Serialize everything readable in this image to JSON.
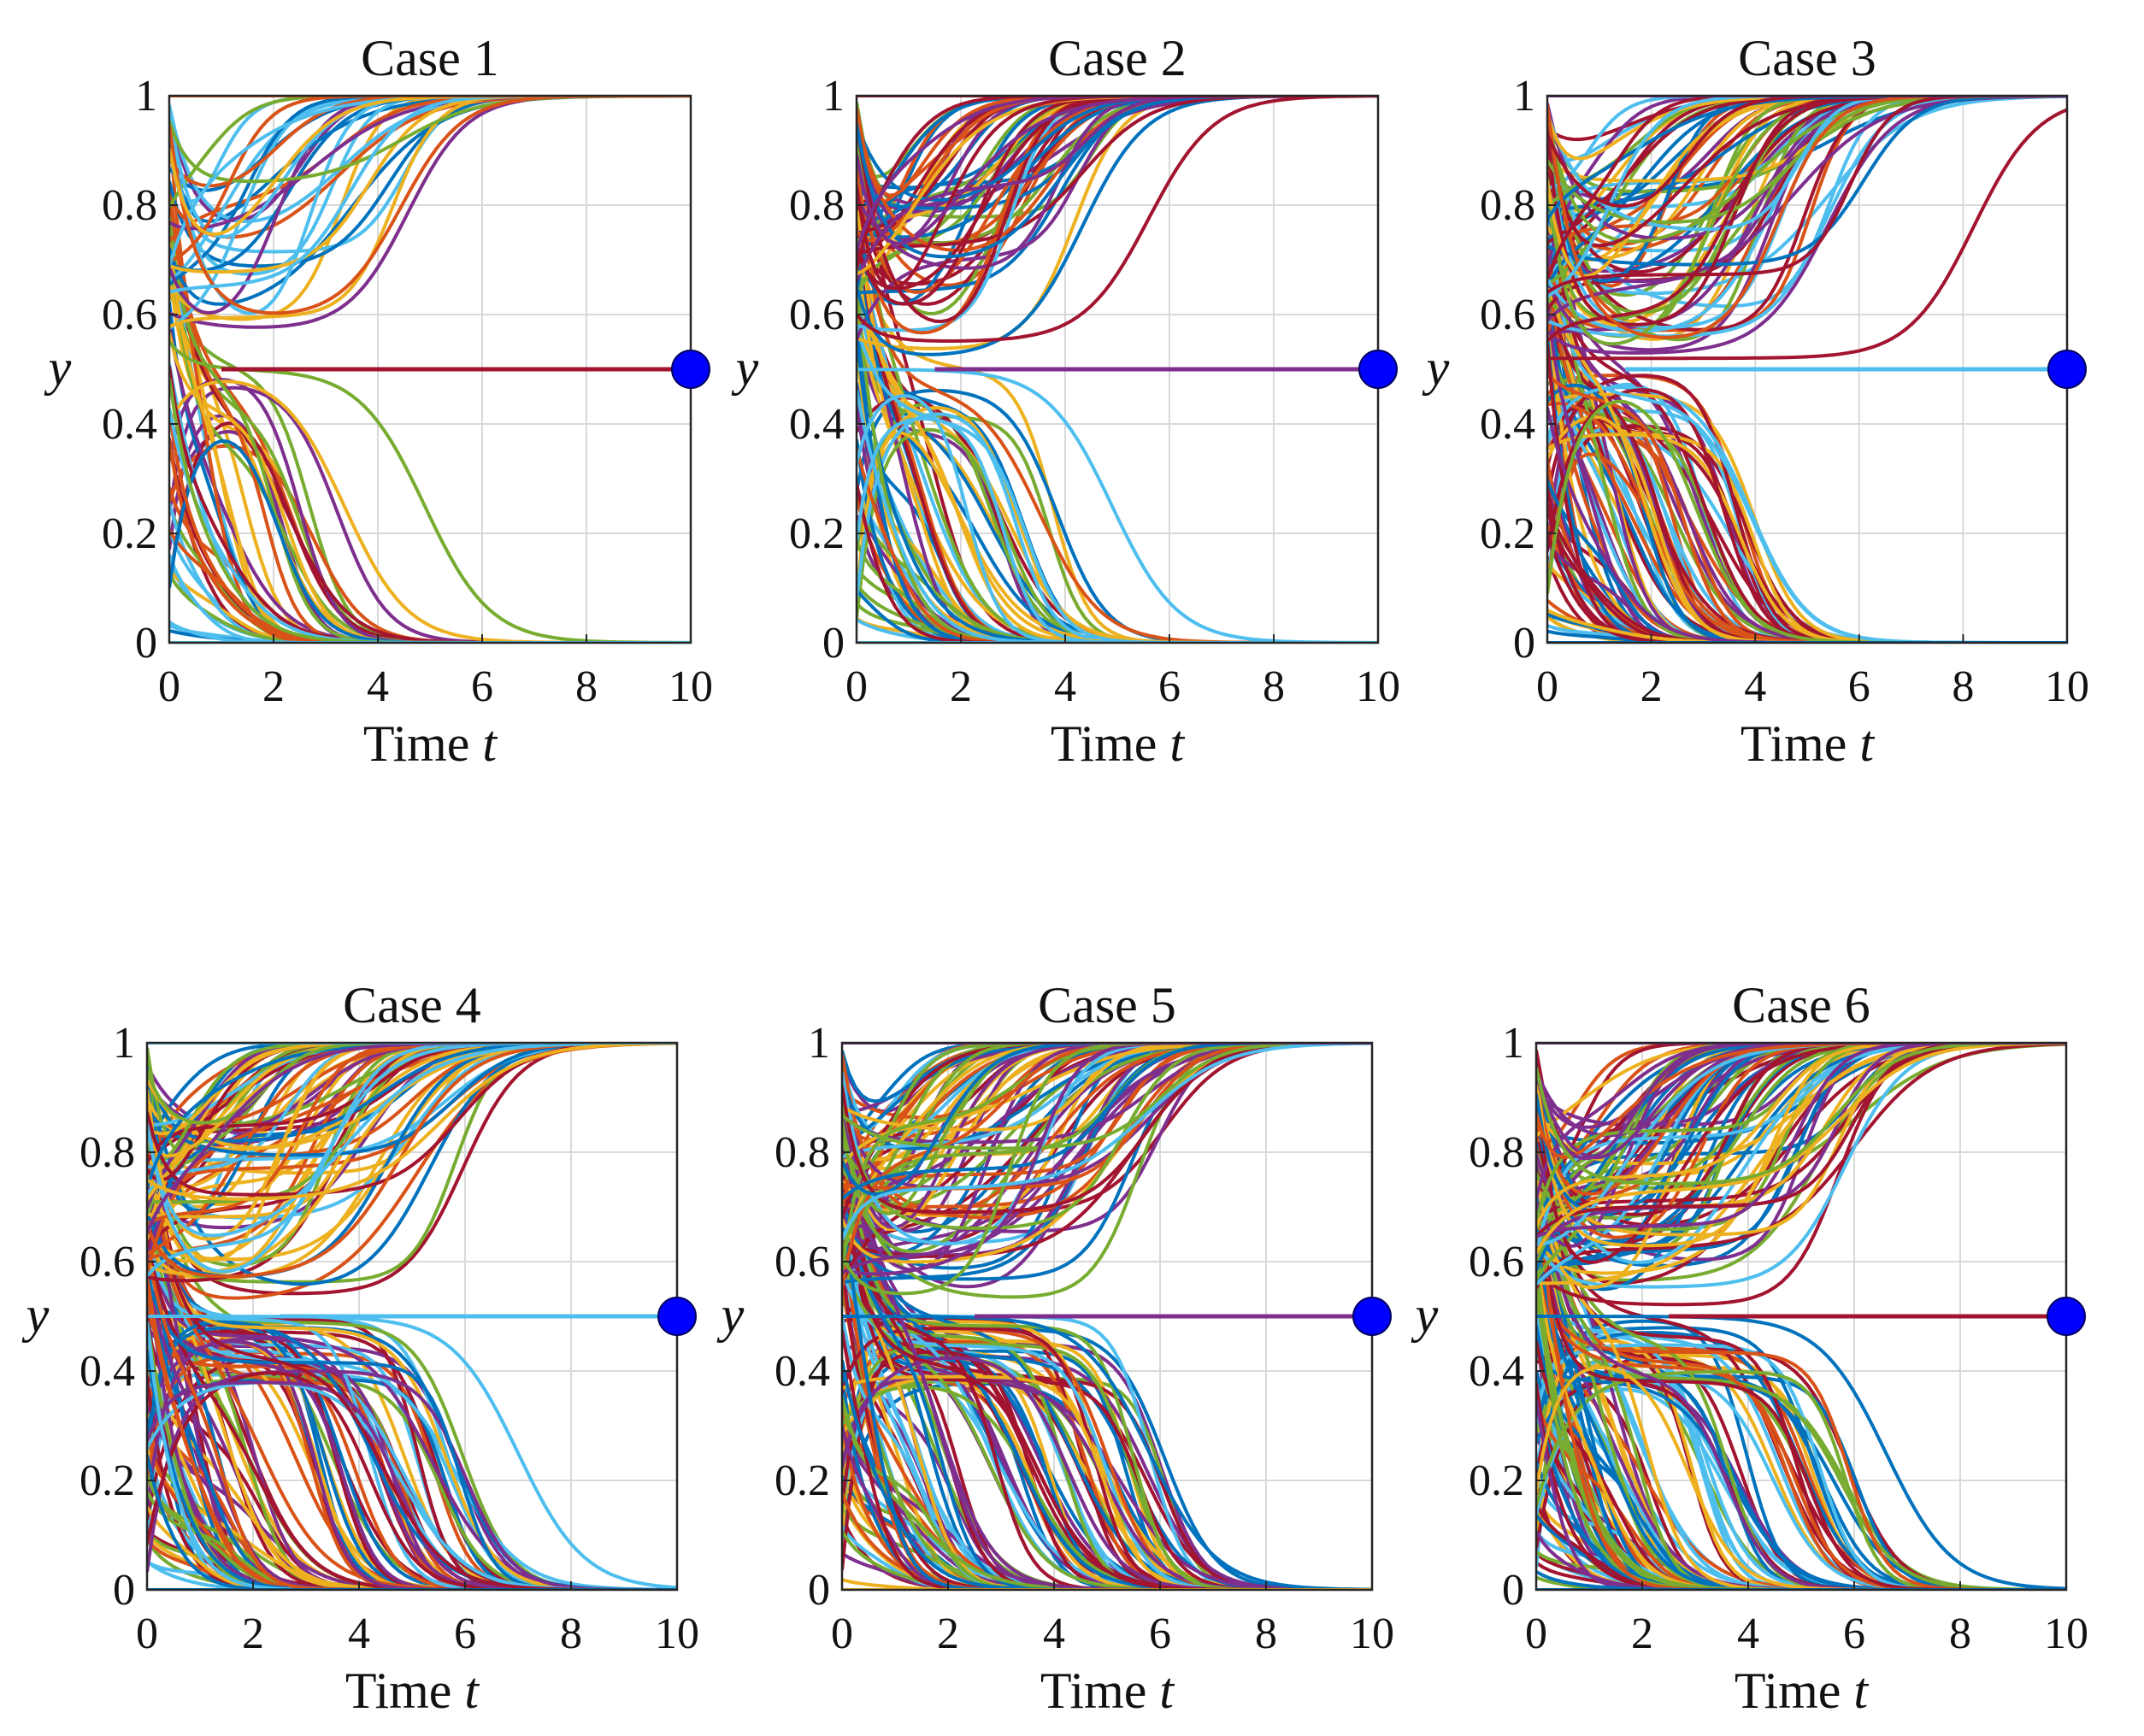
{
  "figure": {
    "panel_titles": [
      "Case 1",
      "Case 2",
      "Case 3",
      "Case 4",
      "Case 5",
      "Case 6"
    ],
    "xlabel_word": "Time",
    "xlabel_var": "t",
    "ylabel": "y"
  },
  "style": {
    "palette": [
      "#0072BD",
      "#D95319",
      "#EDB120",
      "#7E2F8E",
      "#77AC30",
      "#4DBEEE",
      "#A2142F"
    ],
    "marker_color": "#0000FF",
    "grid_color": "#d9d9d9",
    "axes_color": "#262626"
  },
  "chart_data": [
    {
      "type": "line",
      "title": "Case 1",
      "xlabel": "Time t",
      "ylabel": "y",
      "xlim": [
        0,
        10
      ],
      "ylim": [
        0,
        1
      ],
      "xticks": [
        "0",
        "2",
        "4",
        "6",
        "8",
        "10"
      ],
      "yticks": [
        "0",
        "0.2",
        "0.4",
        "0.6",
        "0.8",
        "1"
      ],
      "grid": true,
      "highlight_line": {
        "y": 0.5,
        "x_start": 1,
        "x_end": 10,
        "color": "#A2142F"
      },
      "marker": {
        "x": 10,
        "y": 0.5
      },
      "series_description": {
        "rising_count": 30,
        "falling_count": 45,
        "notable": [
          {
            "y0": 0.55,
            "dip": 0.5,
            "t_mid": 4.9,
            "end": 0,
            "color": "#77AC30"
          },
          {
            "y0": 0.9,
            "dip": 0.68,
            "t_mid": 2.0,
            "end": 1,
            "color": "#EDB120"
          }
        ]
      }
    },
    {
      "type": "line",
      "title": "Case 2",
      "xlabel": "Time t",
      "ylabel": "y",
      "xlim": [
        0,
        10
      ],
      "ylim": [
        0,
        1
      ],
      "xticks": [
        "0",
        "2",
        "4",
        "6",
        "8",
        "10"
      ],
      "yticks": [
        "0",
        "0.2",
        "0.4",
        "0.6",
        "0.8",
        "1"
      ],
      "grid": true,
      "highlight_line": {
        "y": 0.5,
        "x_start": 1.5,
        "x_end": 10,
        "color": "#7E2F8E"
      },
      "marker": {
        "x": 10,
        "y": 0.5
      },
      "series_description": {
        "rising_count": 55,
        "falling_count": 60,
        "notable": [
          {
            "y0": 0.6,
            "dip": 0.55,
            "t_mid": 5.6,
            "end": 1,
            "color": "#A2142F"
          },
          {
            "y0": 0.5,
            "dip": 0.5,
            "t_mid": 4.9,
            "end": 0,
            "color": "#4DBEEE"
          }
        ]
      }
    },
    {
      "type": "line",
      "title": "Case 3",
      "xlabel": "Time t",
      "ylabel": "y",
      "xlim": [
        0,
        10
      ],
      "ylim": [
        0,
        1
      ],
      "xticks": [
        "0",
        "2",
        "4",
        "6",
        "8",
        "10"
      ],
      "yticks": [
        "0",
        "0.2",
        "0.4",
        "0.6",
        "0.8",
        "1"
      ],
      "grid": true,
      "highlight_line": {
        "y": 0.5,
        "x_start": 1.5,
        "x_end": 10,
        "color": "#4DBEEE"
      },
      "marker": {
        "x": 10,
        "y": 0.5
      },
      "series_description": {
        "rising_count": 70,
        "falling_count": 90,
        "notable": [
          {
            "y0": 0.52,
            "dip": 0.52,
            "t_mid": 8.2,
            "end": 1,
            "color": "#A2142F"
          }
        ]
      }
    },
    {
      "type": "line",
      "title": "Case 4",
      "xlabel": "Time t",
      "ylabel": "y",
      "xlim": [
        0,
        10
      ],
      "ylim": [
        0,
        1
      ],
      "xticks": [
        "0",
        "2",
        "4",
        "6",
        "8",
        "10"
      ],
      "yticks": [
        "0",
        "0.2",
        "0.4",
        "0.6",
        "0.8",
        "1"
      ],
      "grid": true,
      "highlight_line": {
        "y": 0.5,
        "x_start": 2.5,
        "x_end": 10,
        "color": "#4DBEEE"
      },
      "marker": {
        "x": 10,
        "y": 0.5
      },
      "series_description": {
        "rising_count": 80,
        "falling_count": 110,
        "notable": [
          {
            "y0": 0.5,
            "dip": 0.5,
            "t_mid": 7.0,
            "end": 0,
            "color": "#4DBEEE"
          }
        ]
      }
    },
    {
      "type": "line",
      "title": "Case 5",
      "xlabel": "Time t",
      "ylabel": "y",
      "xlim": [
        0,
        10
      ],
      "ylim": [
        0,
        1
      ],
      "xticks": [
        "0",
        "2",
        "4",
        "6",
        "8",
        "10"
      ],
      "yticks": [
        "0",
        "0.2",
        "0.4",
        "0.6",
        "0.8",
        "1"
      ],
      "grid": true,
      "highlight_line": {
        "y": 0.5,
        "x_start": 2.5,
        "x_end": 10,
        "color": "#7E2F8E"
      },
      "marker": {
        "x": 10,
        "y": 0.5
      },
      "series_description": {
        "rising_count": 85,
        "falling_count": 110,
        "notable": [
          {
            "y0": 0.5,
            "dip": 0.5,
            "t_mid": 5.8,
            "end": 0,
            "color": "#0072BD"
          }
        ]
      }
    },
    {
      "type": "line",
      "title": "Case 6",
      "xlabel": "Time t",
      "ylabel": "y",
      "xlim": [
        0,
        10
      ],
      "ylim": [
        0,
        1
      ],
      "xticks": [
        "0",
        "2",
        "4",
        "6",
        "8",
        "10"
      ],
      "yticks": [
        "0",
        "0.2",
        "0.4",
        "0.6",
        "0.8",
        "1"
      ],
      "grid": true,
      "highlight_line": {
        "y": 0.5,
        "x_start": 2.5,
        "x_end": 10,
        "color": "#A2142F"
      },
      "marker": {
        "x": 10,
        "y": 0.5
      },
      "series_description": {
        "rising_count": 85,
        "falling_count": 110,
        "notable": [
          {
            "y0": 0.5,
            "dip": 0.5,
            "t_mid": 6.6,
            "end": 0,
            "color": "#0072BD"
          }
        ]
      }
    }
  ]
}
